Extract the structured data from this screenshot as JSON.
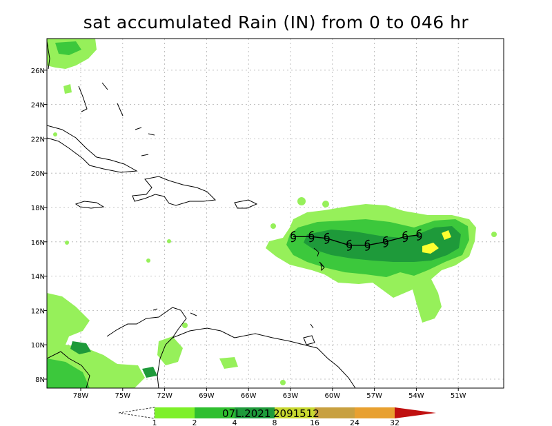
{
  "title": "sat accumulated Rain (IN) from 0 to 046 hr",
  "map": {
    "lon_ticks": [
      {
        "lon": -78,
        "label": "78W"
      },
      {
        "lon": -75,
        "label": "75W"
      },
      {
        "lon": -72,
        "label": "72W"
      },
      {
        "lon": -69,
        "label": "69W"
      },
      {
        "lon": -66,
        "label": "66W"
      },
      {
        "lon": -63,
        "label": "63W"
      },
      {
        "lon": -60,
        "label": "60W"
      },
      {
        "lon": -57,
        "label": "57W"
      },
      {
        "lon": -54,
        "label": "54W"
      },
      {
        "lon": -51,
        "label": "51W"
      }
    ],
    "lat_ticks": [
      {
        "lat": 8,
        "label": "8N"
      },
      {
        "lat": 10,
        "label": "10N"
      },
      {
        "lat": 12,
        "label": "12N"
      },
      {
        "lat": 14,
        "label": "14N"
      },
      {
        "lat": 16,
        "label": "16N"
      },
      {
        "lat": 18,
        "label": "18N"
      },
      {
        "lat": 20,
        "label": "20N"
      },
      {
        "lat": 22,
        "label": "22N"
      },
      {
        "lat": 24,
        "label": "24N"
      },
      {
        "lat": 26,
        "label": "26N"
      }
    ],
    "storm_track": [
      {
        "lon": -53.8,
        "lat": 16.4
      },
      {
        "lon": -54.8,
        "lat": 16.3
      },
      {
        "lon": -56.2,
        "lat": 16.0
      },
      {
        "lon": -57.5,
        "lat": 15.8
      },
      {
        "lon": -58.8,
        "lat": 15.8
      },
      {
        "lon": -60.4,
        "lat": 16.2
      },
      {
        "lon": -61.5,
        "lat": 16.3
      },
      {
        "lon": -62.8,
        "lat": 16.3
      }
    ]
  },
  "colorbar": {
    "labels": [
      "1",
      "2",
      "4",
      "8",
      "16",
      "24",
      "32"
    ],
    "colors": [
      "#7ef029",
      "#2fbf2f",
      "#1e9a3a",
      "#c8d830",
      "#c8a040",
      "#e8a030",
      "#c01010"
    ],
    "storm_id": "07L.2021",
    "storm_date": "2091512"
  },
  "colors": {
    "light_green": "#96f05a",
    "green": "#3cc83c",
    "dark_green": "#1e9a3a",
    "yellow": "#ffff30",
    "coast": "#000000"
  }
}
